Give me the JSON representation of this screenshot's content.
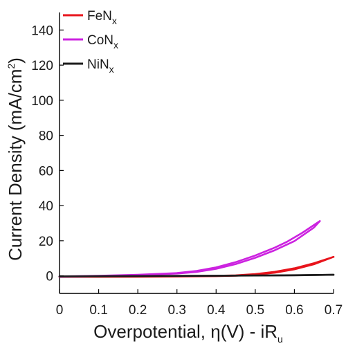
{
  "chart_data": {
    "type": "line",
    "title": "",
    "xlabel": "Overpotential, η(V) - iR",
    "xlabel_sub": "u",
    "ylabel": "Current Density (mA/cm",
    "ylabel_sup": "2",
    "ylabel_tail": ")",
    "xlim": [
      0,
      0.7
    ],
    "ylim": [
      -10,
      150
    ],
    "xticks": [
      0,
      0.1,
      0.2,
      0.3,
      0.4,
      0.5,
      0.6,
      0.7
    ],
    "xtick_labels": [
      "0",
      "0.1",
      "0.2",
      "0.3",
      "0.4",
      "0.5",
      "0.6",
      "0.7"
    ],
    "yticks": [
      0,
      20,
      40,
      60,
      80,
      100,
      120,
      140
    ],
    "ytick_labels": [
      "0",
      "20",
      "40",
      "60",
      "80",
      "100",
      "120",
      "140"
    ],
    "grid": false,
    "legend_position": "top-left",
    "series": [
      {
        "name": "FeN",
        "name_sub": "x",
        "color": "#e8141c",
        "forward": [
          [
            0,
            -0.5
          ],
          [
            0.1,
            -0.4
          ],
          [
            0.2,
            -0.3
          ],
          [
            0.3,
            -0.2
          ],
          [
            0.4,
            0.0
          ],
          [
            0.45,
            0.3
          ],
          [
            0.5,
            1.0
          ],
          [
            0.55,
            2.3
          ],
          [
            0.6,
            4.3
          ],
          [
            0.65,
            7.2
          ],
          [
            0.7,
            10.8
          ]
        ],
        "reverse": [
          [
            0.7,
            10.8
          ],
          [
            0.65,
            6.6
          ],
          [
            0.6,
            3.7
          ],
          [
            0.55,
            1.8
          ],
          [
            0.5,
            0.7
          ],
          [
            0.45,
            0.1
          ],
          [
            0.4,
            -0.2
          ],
          [
            0.3,
            -0.4
          ],
          [
            0.2,
            -0.5
          ],
          [
            0.1,
            -0.6
          ],
          [
            0,
            -0.6
          ]
        ]
      },
      {
        "name": "CoN",
        "name_sub": "x",
        "color": "#cc22e0",
        "forward": [
          [
            0,
            -0.5
          ],
          [
            0.1,
            -0.2
          ],
          [
            0.2,
            0.4
          ],
          [
            0.3,
            1.3
          ],
          [
            0.35,
            2.2
          ],
          [
            0.4,
            4.0
          ],
          [
            0.45,
            6.7
          ],
          [
            0.5,
            10.3
          ],
          [
            0.55,
            14.6
          ],
          [
            0.6,
            19.8
          ],
          [
            0.65,
            27.5
          ],
          [
            0.665,
            31.2
          ]
        ],
        "reverse": [
          [
            0.665,
            31.2
          ],
          [
            0.62,
            24.5
          ],
          [
            0.58,
            19.3
          ],
          [
            0.55,
            16.1
          ],
          [
            0.5,
            11.6
          ],
          [
            0.45,
            7.8
          ],
          [
            0.4,
            4.8
          ],
          [
            0.35,
            2.8
          ],
          [
            0.3,
            1.6
          ],
          [
            0.2,
            0.6
          ],
          [
            0.1,
            0.0
          ],
          [
            0,
            -0.3
          ]
        ]
      },
      {
        "name": "NiN",
        "name_sub": "x",
        "color": "#1c1c1c",
        "forward": [
          [
            0,
            -0.3
          ],
          [
            0.1,
            -0.2
          ],
          [
            0.2,
            -0.1
          ],
          [
            0.3,
            0.0
          ],
          [
            0.4,
            0.1
          ],
          [
            0.5,
            0.2
          ],
          [
            0.6,
            0.35
          ],
          [
            0.7,
            0.6
          ]
        ],
        "reverse": [
          [
            0.7,
            0.6
          ],
          [
            0.6,
            0.3
          ],
          [
            0.5,
            0.15
          ],
          [
            0.4,
            0.05
          ],
          [
            0.3,
            -0.05
          ],
          [
            0.2,
            -0.15
          ],
          [
            0.1,
            -0.25
          ],
          [
            0,
            -0.35
          ]
        ]
      }
    ]
  }
}
